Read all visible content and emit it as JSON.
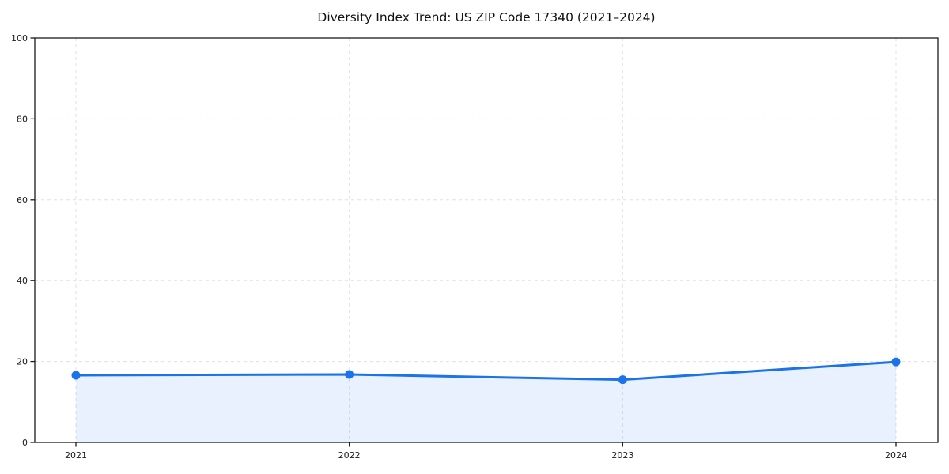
{
  "chart_data": {
    "type": "area",
    "title": "Diversity Index Trend: US ZIP Code 17340 (2021–2024)",
    "x": [
      2021,
      2022,
      2023,
      2024
    ],
    "values": [
      16.6,
      16.8,
      15.5,
      19.9
    ],
    "xlabel": "",
    "ylabel": "",
    "ylim": [
      0,
      100
    ],
    "yticks": [
      0,
      20,
      40,
      60,
      80,
      100
    ],
    "xtick_labels": [
      "2021",
      "2022",
      "2023",
      "2024"
    ],
    "grid": true,
    "grid_style": "dashed",
    "legend": "none",
    "marker": "circle",
    "colors": {
      "line": "#1a73e8",
      "fill": "#1a73e8",
      "fill_opacity": 0.1,
      "grid": "#e0e0e0",
      "spine": "#1a1a1a",
      "title": "#111111",
      "tick_label": "#1a1a1a",
      "background": "#ffffff"
    }
  }
}
